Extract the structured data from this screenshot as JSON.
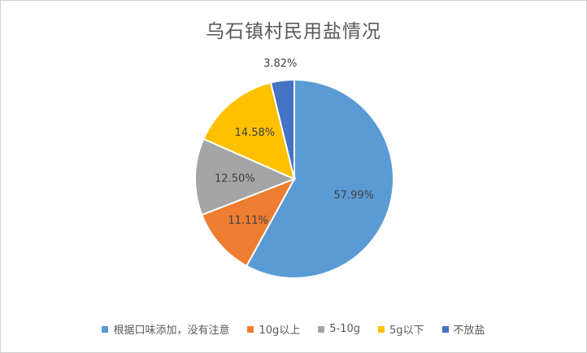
{
  "chart_data": {
    "type": "pie",
    "title": "乌石镇村民用盐情况",
    "categories": [
      "根据口味添加，没有注意",
      "10g以上",
      "5-10g",
      "5g以下",
      "不放盐"
    ],
    "values": [
      57.99,
      11.11,
      12.5,
      14.58,
      3.82
    ],
    "labels": [
      "57.99%",
      "11.11%",
      "12.50%",
      "14.58%",
      "3.82%"
    ],
    "colors": [
      "#5B9BD5",
      "#ED7D31",
      "#A5A5A5",
      "#FFC000",
      "#4472C4"
    ],
    "legend_position": "bottom",
    "start_angle": "12 o'clock",
    "direction": "clockwise"
  }
}
